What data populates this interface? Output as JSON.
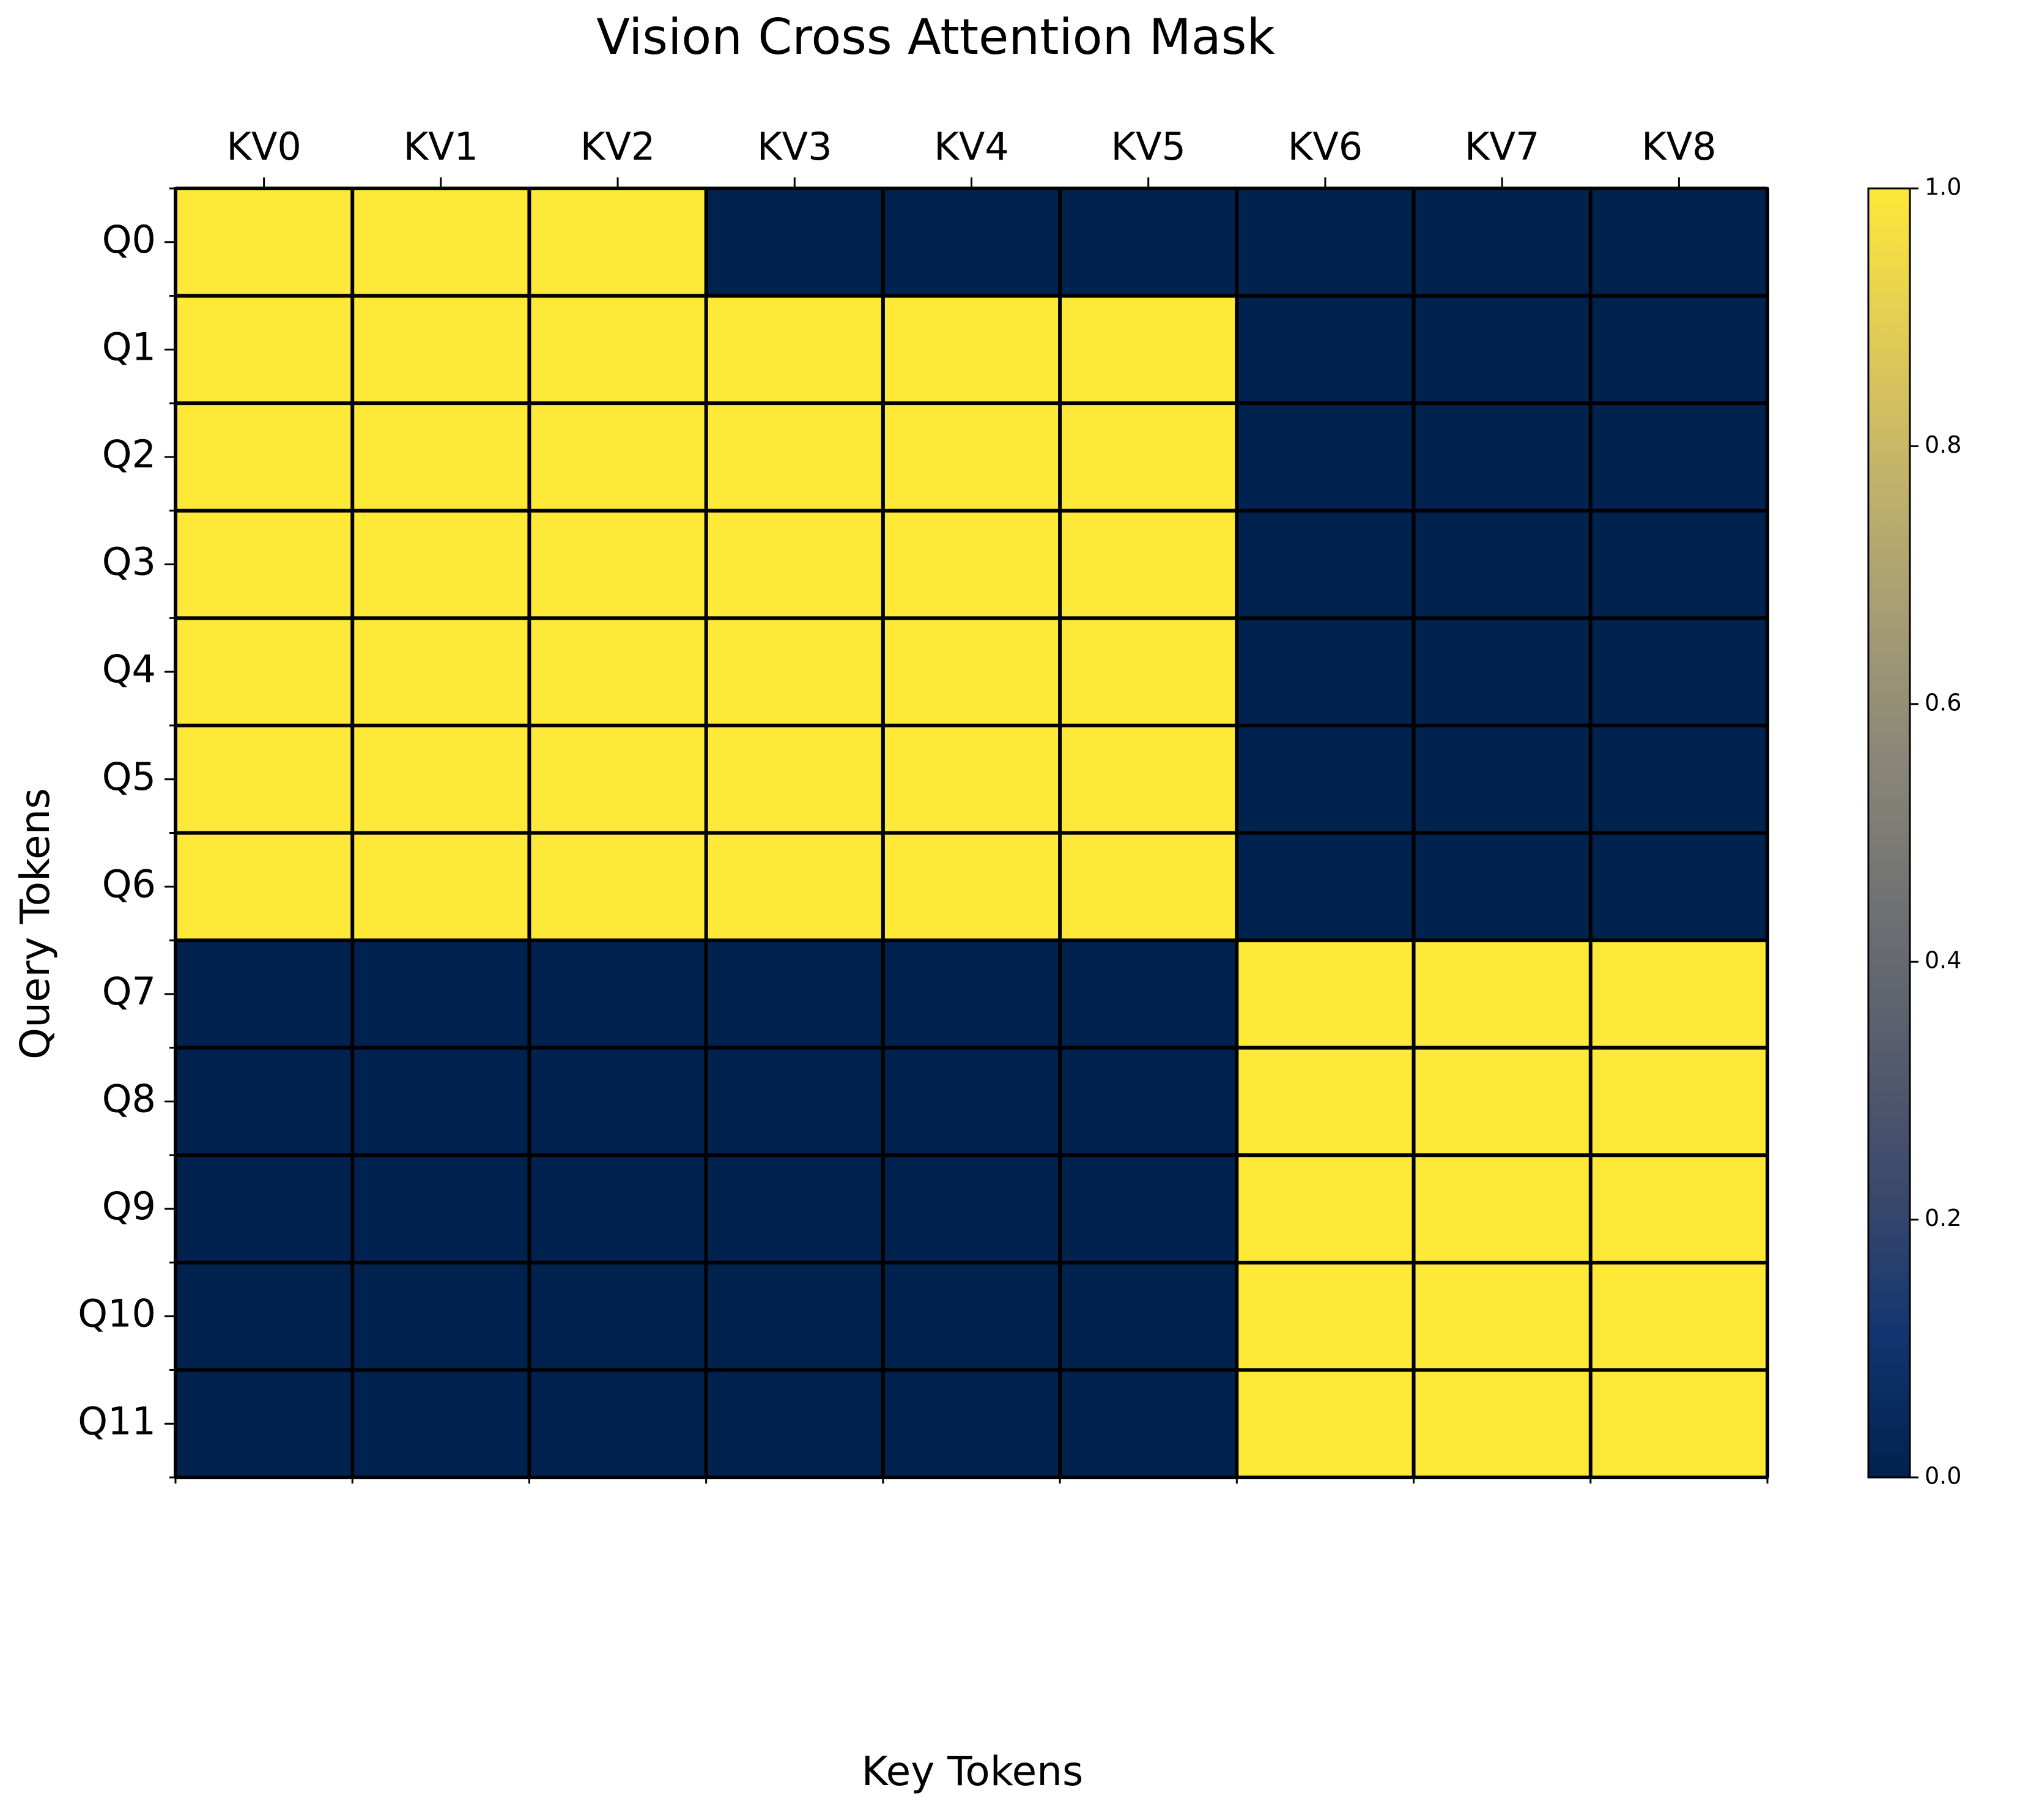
{
  "chart_data": {
    "type": "heatmap",
    "title": "Vision Cross Attention Mask",
    "xlabel": "Key Tokens",
    "ylabel": "Query Tokens",
    "x_categories": [
      "KV0",
      "KV1",
      "KV2",
      "KV3",
      "KV4",
      "KV5",
      "KV6",
      "KV7",
      "KV8"
    ],
    "y_categories": [
      "Q0",
      "Q1",
      "Q2",
      "Q3",
      "Q4",
      "Q5",
      "Q6",
      "Q7",
      "Q8",
      "Q9",
      "Q10",
      "Q11"
    ],
    "values": [
      [
        1,
        1,
        1,
        0,
        0,
        0,
        0,
        0,
        0
      ],
      [
        1,
        1,
        1,
        1,
        1,
        1,
        0,
        0,
        0
      ],
      [
        1,
        1,
        1,
        1,
        1,
        1,
        0,
        0,
        0
      ],
      [
        1,
        1,
        1,
        1,
        1,
        1,
        0,
        0,
        0
      ],
      [
        1,
        1,
        1,
        1,
        1,
        1,
        0,
        0,
        0
      ],
      [
        1,
        1,
        1,
        1,
        1,
        1,
        0,
        0,
        0
      ],
      [
        1,
        1,
        1,
        1,
        1,
        1,
        0,
        0,
        0
      ],
      [
        0,
        0,
        0,
        0,
        0,
        0,
        1,
        1,
        1
      ],
      [
        0,
        0,
        0,
        0,
        0,
        0,
        1,
        1,
        1
      ],
      [
        0,
        0,
        0,
        0,
        0,
        0,
        1,
        1,
        1
      ],
      [
        0,
        0,
        0,
        0,
        0,
        0,
        1,
        1,
        1
      ],
      [
        0,
        0,
        0,
        0,
        0,
        0,
        1,
        1,
        1
      ]
    ],
    "x_tick_position": "top",
    "grid": true,
    "colormap": "cividis",
    "colormap_stops": [
      "#00224e",
      "#123570",
      "#3b496c",
      "#575d6d",
      "#707173",
      "#8a8678",
      "#a59c74",
      "#c3b369",
      "#e1cc55",
      "#fee838"
    ],
    "colorbar": {
      "range": [
        0,
        1
      ],
      "ticks": [
        "0.0",
        "0.2",
        "0.4",
        "0.6",
        "0.8",
        "1.0"
      ]
    }
  }
}
